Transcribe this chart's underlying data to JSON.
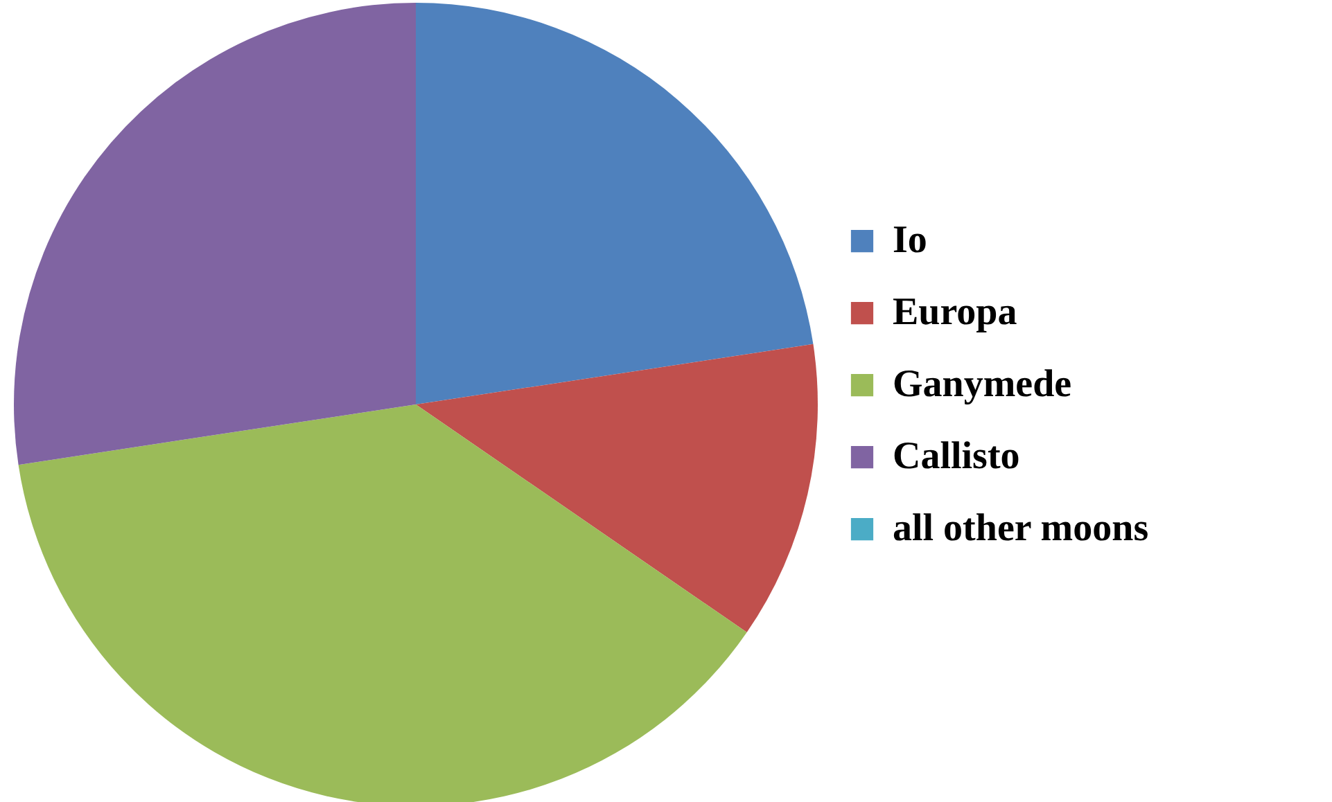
{
  "chart_data": {
    "type": "pie",
    "categories": [
      "Io",
      "Europa",
      "Ganymede",
      "Callisto",
      "all other moons"
    ],
    "values": [
      22.6,
      12.0,
      38.0,
      27.4,
      0.0
    ],
    "colors": [
      "#4f81bd",
      "#c0504d",
      "#9bbb59",
      "#8064a2",
      "#4bacc6"
    ],
    "legend": "right"
  }
}
